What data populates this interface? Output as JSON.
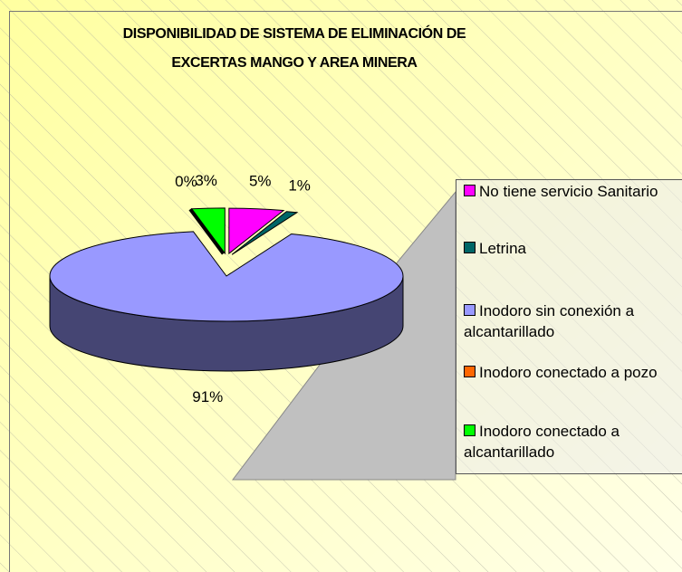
{
  "chart_data": {
    "type": "pie",
    "title": [
      "DISPONIBILIDAD DE SISTEMA DE ELIMINACIÓN DE",
      "EXCERTAS MANGO Y AREA MINERA"
    ],
    "categories": [
      "No tiene servicio Sanitario",
      "Letrina",
      "Inodoro sin conexión a alcantarillado",
      "Inodoro conectado a pozo",
      "Inodoro conectado a alcantarillado"
    ],
    "values": [
      5,
      1,
      91,
      0,
      3
    ],
    "value_labels": [
      "5%",
      "1%",
      "91%",
      "0%",
      "3%"
    ],
    "colors": [
      "#ff00ff",
      "#006666",
      "#9999ff",
      "#ff6600",
      "#00ff00"
    ],
    "legend": "right"
  }
}
